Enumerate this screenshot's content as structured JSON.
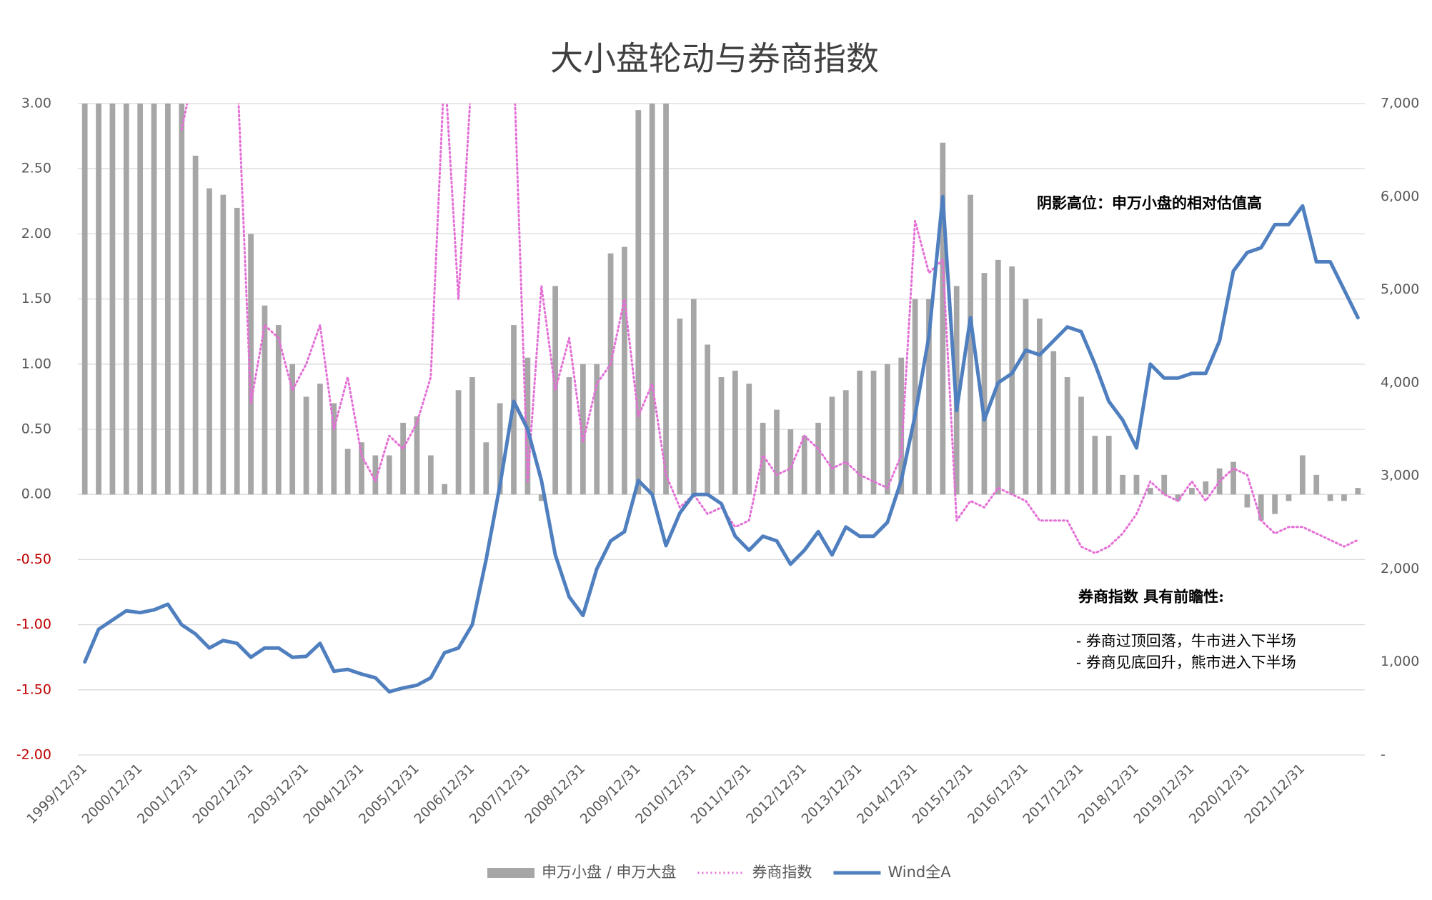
{
  "chart_data": {
    "type": "bar",
    "title": "大小盘轮动与券商指数",
    "categories": [
      "1999/12/31",
      null,
      null,
      null,
      "2000/12/31",
      null,
      null,
      null,
      "2001/12/31",
      null,
      null,
      null,
      "2002/12/31",
      null,
      null,
      null,
      "2003/12/31",
      null,
      null,
      null,
      "2004/12/31",
      null,
      null,
      null,
      "2005/12/31",
      null,
      null,
      null,
      "2006/12/31",
      null,
      null,
      null,
      "2007/12/31",
      null,
      null,
      null,
      "2008/12/31",
      null,
      null,
      null,
      "2009/12/31",
      null,
      null,
      null,
      "2010/12/31",
      null,
      null,
      null,
      "2011/12/31",
      null,
      null,
      null,
      "2012/12/31",
      null,
      null,
      null,
      "2013/12/31",
      null,
      null,
      null,
      "2014/12/31",
      null,
      null,
      null,
      "2015/12/31",
      null,
      null,
      null,
      "2016/12/31",
      null,
      null,
      null,
      "2017/12/31",
      null,
      null,
      null,
      "2018/12/31",
      null,
      null,
      null,
      "2019/12/31",
      null,
      null,
      null,
      "2020/12/31",
      null,
      null,
      null,
      "2021/12/31",
      null,
      null,
      null,
      null
    ],
    "series": [
      {
        "name": "申万小盘 / 申万大盘",
        "type": "bar",
        "color": "#a6a6a6",
        "values": [
          3,
          3,
          3,
          3,
          3,
          3,
          3,
          3,
          2.6,
          2.35,
          2.3,
          2.2,
          2.0,
          1.45,
          1.3,
          1.0,
          0.75,
          0.85,
          0.7,
          0.35,
          0.4,
          0.3,
          0.3,
          0.55,
          0.6,
          0.3,
          0.08,
          0.8,
          0.9,
          0.4,
          0.7,
          1.3,
          1.05,
          -0.05,
          1.6,
          0.9,
          1.0,
          1.0,
          1.85,
          1.9,
          2.95,
          3,
          3,
          1.35,
          1.5,
          1.15,
          0.9,
          0.95,
          0.85,
          0.55,
          0.65,
          0.5,
          0.45,
          0.55,
          0.75,
          0.8,
          0.95,
          0.95,
          1.0,
          1.05,
          1.5,
          1.5,
          2.7,
          1.6,
          2.3,
          1.7,
          1.8,
          1.75,
          1.5,
          1.35,
          1.1,
          0.9,
          0.75,
          0.45,
          0.45,
          0.15,
          0.15,
          0.05,
          0.15,
          -0.05,
          0.05,
          0.1,
          0.2,
          0.25,
          -0.1,
          -0.2,
          -0.15,
          -0.05,
          0.3,
          0.15,
          -0.05,
          -0.05,
          0.05
        ]
      },
      {
        "name": "券商指数",
        "type": "line",
        "dash": "dotted",
        "color": "#e46fd6",
        "values": [
          null,
          null,
          null,
          null,
          null,
          null,
          null,
          2.8,
          3.3,
          3.3,
          3.3,
          3.3,
          0.7,
          1.3,
          1.2,
          0.8,
          1.0,
          1.3,
          0.5,
          0.9,
          0.3,
          0.1,
          0.45,
          0.35,
          0.55,
          0.9,
          3.3,
          1.5,
          3.3,
          3.3,
          3.3,
          3.3,
          0.1,
          1.6,
          0.8,
          1.2,
          0.4,
          0.85,
          1.0,
          1.5,
          0.6,
          0.85,
          0.15,
          -0.1,
          0.0,
          -0.15,
          -0.1,
          -0.25,
          -0.2,
          0.3,
          0.15,
          0.2,
          0.45,
          0.35,
          0.2,
          0.25,
          0.15,
          0.1,
          0.05,
          0.3,
          2.1,
          1.7,
          1.8,
          -0.2,
          -0.05,
          -0.1,
          0.05,
          0.0,
          -0.05,
          -0.2,
          -0.2,
          -0.2,
          -0.4,
          -0.45,
          -0.4,
          -0.3,
          -0.15,
          0.1,
          0.0,
          -0.05,
          0.1,
          -0.05,
          0.1,
          0.2,
          0.15,
          -0.2,
          -0.3,
          -0.25,
          -0.25,
          -0.3,
          -0.35,
          -0.4,
          -0.35
        ]
      },
      {
        "name": "Wind全A",
        "type": "line",
        "axis": "y2",
        "color": "#4f7fbf",
        "values": [
          1000,
          1350,
          1450,
          1550,
          1530,
          1560,
          1620,
          1400,
          1300,
          1150,
          1230,
          1200,
          1050,
          1150,
          1150,
          1050,
          1060,
          1200,
          900,
          920,
          870,
          830,
          680,
          720,
          750,
          830,
          1100,
          1150,
          1400,
          2100,
          2900,
          3800,
          3500,
          2950,
          2150,
          1700,
          1500,
          2000,
          2300,
          2400,
          2950,
          2800,
          2250,
          2600,
          2800,
          2800,
          2700,
          2350,
          2200,
          2350,
          2300,
          2050,
          2200,
          2400,
          2150,
          2450,
          2350,
          2350,
          2500,
          2950,
          3650,
          4500,
          6000,
          3700,
          4700,
          3600,
          4000,
          4100,
          4350,
          4300,
          4450,
          4600,
          4550,
          4200,
          3800,
          3600,
          3300,
          4200,
          4050,
          4050,
          4100,
          4100,
          4450,
          5200,
          5400,
          5450,
          5700,
          5700,
          5900,
          5300,
          5300,
          5000,
          4700
        ]
      }
    ],
    "ylim": [
      -2,
      3
    ],
    "yticks": [
      {
        "value": 3,
        "label": "3.00"
      },
      {
        "value": 2.5,
        "label": "2.50"
      },
      {
        "value": 2,
        "label": "2.00"
      },
      {
        "value": 1.5,
        "label": "1.50"
      },
      {
        "value": 1,
        "label": "1.00"
      },
      {
        "value": 0.5,
        "label": "0.50"
      },
      {
        "value": 0,
        "label": "0.00"
      },
      {
        "value": -0.5,
        "label": "-0.50"
      },
      {
        "value": -1,
        "label": "-1.00"
      },
      {
        "value": -1.5,
        "label": "-1.50"
      },
      {
        "value": -2,
        "label": "-2.00"
      }
    ],
    "y2lim": [
      0,
      7000
    ],
    "y2ticks": [
      {
        "value": 7000,
        "label": "7,000"
      },
      {
        "value": 6000,
        "label": "6,000"
      },
      {
        "value": 5000,
        "label": "5,000"
      },
      {
        "value": 4000,
        "label": "4,000"
      },
      {
        "value": 3000,
        "label": "3,000"
      },
      {
        "value": 2000,
        "label": "2,000"
      },
      {
        "value": 1000,
        "label": "1,000"
      },
      {
        "value": 0,
        "label": "-"
      }
    ],
    "negative_tick_color": "#c00000",
    "grid": true,
    "legend": "bottom",
    "annotations": [
      "阴影高位：申万小盘的相对估值高",
      "券商指数 具有前瞻性:",
      "- 券商过顶回落，牛市进入下半场",
      "- 券商见底回升，熊市进入下半场"
    ]
  }
}
